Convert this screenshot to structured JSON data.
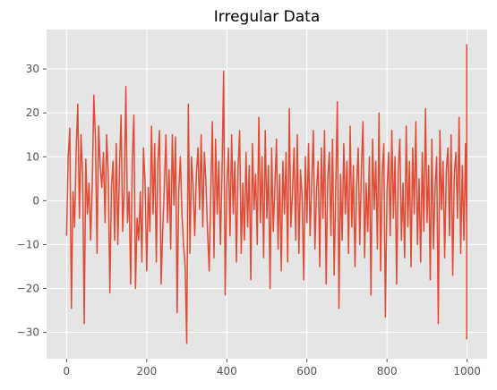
{
  "chart_data": {
    "type": "line",
    "title": "Irregular Data",
    "xlabel": "",
    "ylabel": "",
    "xlim": [
      -50,
      1050
    ],
    "ylim": [
      -36,
      39
    ],
    "x_ticks": [
      0,
      200,
      400,
      600,
      800,
      1000
    ],
    "x_tick_labels": [
      "0",
      "200",
      "400",
      "600",
      "800",
      "1000"
    ],
    "y_ticks": [
      -30,
      -20,
      -10,
      0,
      10,
      20,
      30
    ],
    "y_tick_labels": [
      "−30",
      "−20",
      "−10",
      "0",
      "10",
      "20",
      "30"
    ],
    "grid": true,
    "legend": false,
    "style": {
      "plot_background": "#e5e5e5",
      "grid_color": "#ffffff",
      "line_color": "#e24a33"
    },
    "series": [
      {
        "x_start": 0,
        "x_step": 4,
        "values": [
          -8,
          10,
          16.5,
          -24.5,
          2,
          -6,
          12,
          22,
          -4,
          15,
          6,
          -28,
          9.5,
          -3,
          4,
          -9,
          3,
          24,
          14,
          -12,
          17,
          8,
          3,
          11,
          -5,
          15,
          6,
          -21,
          3,
          9,
          -9,
          13,
          -10,
          7,
          19.5,
          -7,
          3,
          26,
          -5,
          2,
          -19,
          9,
          19.5,
          -20,
          -4,
          -9,
          2,
          -14,
          12,
          4,
          -16,
          3,
          -7,
          17,
          -3,
          13,
          -14,
          9,
          16,
          -19,
          -7,
          3,
          15,
          -5,
          7,
          -11,
          15,
          -1,
          14.5,
          -25.5,
          2,
          10,
          -3,
          -10,
          -15,
          -32.5,
          22,
          -12,
          10,
          3,
          -8,
          6,
          12,
          -2,
          15,
          -6,
          11,
          4,
          -7,
          -16,
          2,
          18,
          -13,
          14,
          -3,
          9,
          -10,
          6,
          29.5,
          -21.5,
          3,
          12,
          -8,
          15,
          -3,
          9,
          -14,
          7,
          16,
          -12,
          4,
          -9,
          11,
          -6,
          8,
          -18,
          13,
          -2,
          6,
          -10,
          19,
          -5,
          10,
          -13,
          16,
          -4,
          8,
          -20,
          12,
          -7,
          3,
          14,
          -11,
          6,
          -16,
          9,
          -3,
          11,
          -14,
          21,
          -6,
          2,
          12,
          -9,
          15,
          -12,
          7,
          1,
          -18,
          10,
          -5,
          13,
          -8,
          4,
          16,
          -11,
          2,
          9,
          -15,
          12,
          -4,
          16,
          -19,
          5,
          11,
          -8,
          14,
          -17,
          3,
          22.5,
          -24.5,
          6,
          -9,
          13,
          -3,
          9,
          -12,
          17,
          -6,
          8,
          -15,
          3,
          12,
          -10,
          7,
          18,
          -13,
          4,
          -7,
          10,
          -21.5,
          14,
          -2,
          9,
          -11,
          20,
          -16,
          6,
          13,
          -26.5,
          2,
          11,
          -8,
          16,
          -4,
          10,
          -19,
          7,
          14,
          -9,
          4,
          -13,
          17,
          -6,
          9,
          -15,
          12,
          -3,
          18,
          -10,
          5,
          -14,
          11,
          -7,
          21,
          -5,
          8,
          -18,
          14,
          -11,
          3,
          10,
          -28,
          16,
          -2,
          9,
          -13,
          7,
          12,
          -8,
          15,
          -17,
          6,
          11,
          -4,
          19,
          -12,
          8,
          -9,
          13,
          -6,
          17,
          -20,
          4,
          10,
          -14,
          16,
          -3,
          7,
          -11,
          12,
          -21,
          9,
          14,
          -7,
          3,
          18,
          -10,
          6,
          -16,
          11,
          -5,
          15,
          -13,
          8,
          20,
          -9,
          2,
          12,
          -18,
          7,
          -11,
          16,
          -4,
          10,
          -15,
          13,
          -8,
          19,
          -3,
          9,
          -12,
          14,
          -6,
          8,
          -17,
          11,
          -2,
          16,
          -10,
          35.5,
          -24.5,
          6,
          12,
          -9,
          15,
          -3,
          10,
          -14,
          7,
          18,
          -11,
          4,
          13,
          -7,
          9,
          -16,
          23.5,
          -27,
          11,
          -5,
          14,
          -9,
          8,
          -13,
          16,
          -4,
          10,
          -18,
          12,
          -7,
          15,
          -2,
          9,
          -12,
          17,
          -6,
          11,
          -15,
          8,
          -3,
          13,
          -10,
          19,
          -8,
          6,
          -14,
          12,
          -5,
          16,
          -11,
          9,
          -17,
          14,
          -4,
          10,
          -13,
          7,
          18,
          -9,
          12,
          -6,
          27.5,
          -16,
          5,
          11,
          -8,
          15,
          -12,
          9,
          -3,
          14,
          -19,
          7,
          13,
          -10,
          16,
          -5,
          10,
          -14,
          12,
          -7,
          18,
          -11,
          6,
          15,
          -22,
          3,
          -31.5,
          8,
          11,
          -9,
          14,
          -17,
          6,
          10,
          -13,
          16,
          -4,
          12,
          -8,
          15,
          -19,
          9,
          7,
          -12,
          13,
          -5,
          10,
          -16,
          8,
          -11,
          15,
          -2,
          9,
          -18,
          12,
          -7,
          16,
          -10,
          11,
          -6,
          14,
          -15,
          8,
          4,
          -19,
          10
        ]
      }
    ]
  }
}
